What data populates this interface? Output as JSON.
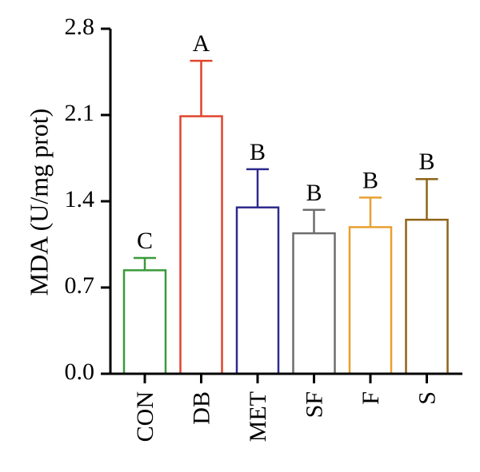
{
  "chart_data": {
    "type": "bar",
    "title": "",
    "xlabel": "",
    "ylabel": "MDA (U/mg prot)",
    "ylim": [
      0,
      2.8
    ],
    "yticks": [
      "0.0",
      "0.7",
      "1.4",
      "2.1",
      "2.8"
    ],
    "ytick_values": [
      0,
      0.7,
      1.4,
      2.1,
      2.8
    ],
    "categories": [
      "CON",
      "DB",
      "MET",
      "SF",
      "F",
      "S"
    ],
    "values": [
      0.84,
      2.09,
      1.35,
      1.14,
      1.19,
      1.25
    ],
    "error_upper": [
      0.94,
      2.54,
      1.66,
      1.33,
      1.43,
      1.58
    ],
    "significance": [
      "C",
      "A",
      "B",
      "B",
      "B",
      "B"
    ],
    "colors": [
      "#3a9a3a",
      "#e0442c",
      "#2e2a8c",
      "#6d6d6d",
      "#e8a030",
      "#8e6418"
    ]
  }
}
